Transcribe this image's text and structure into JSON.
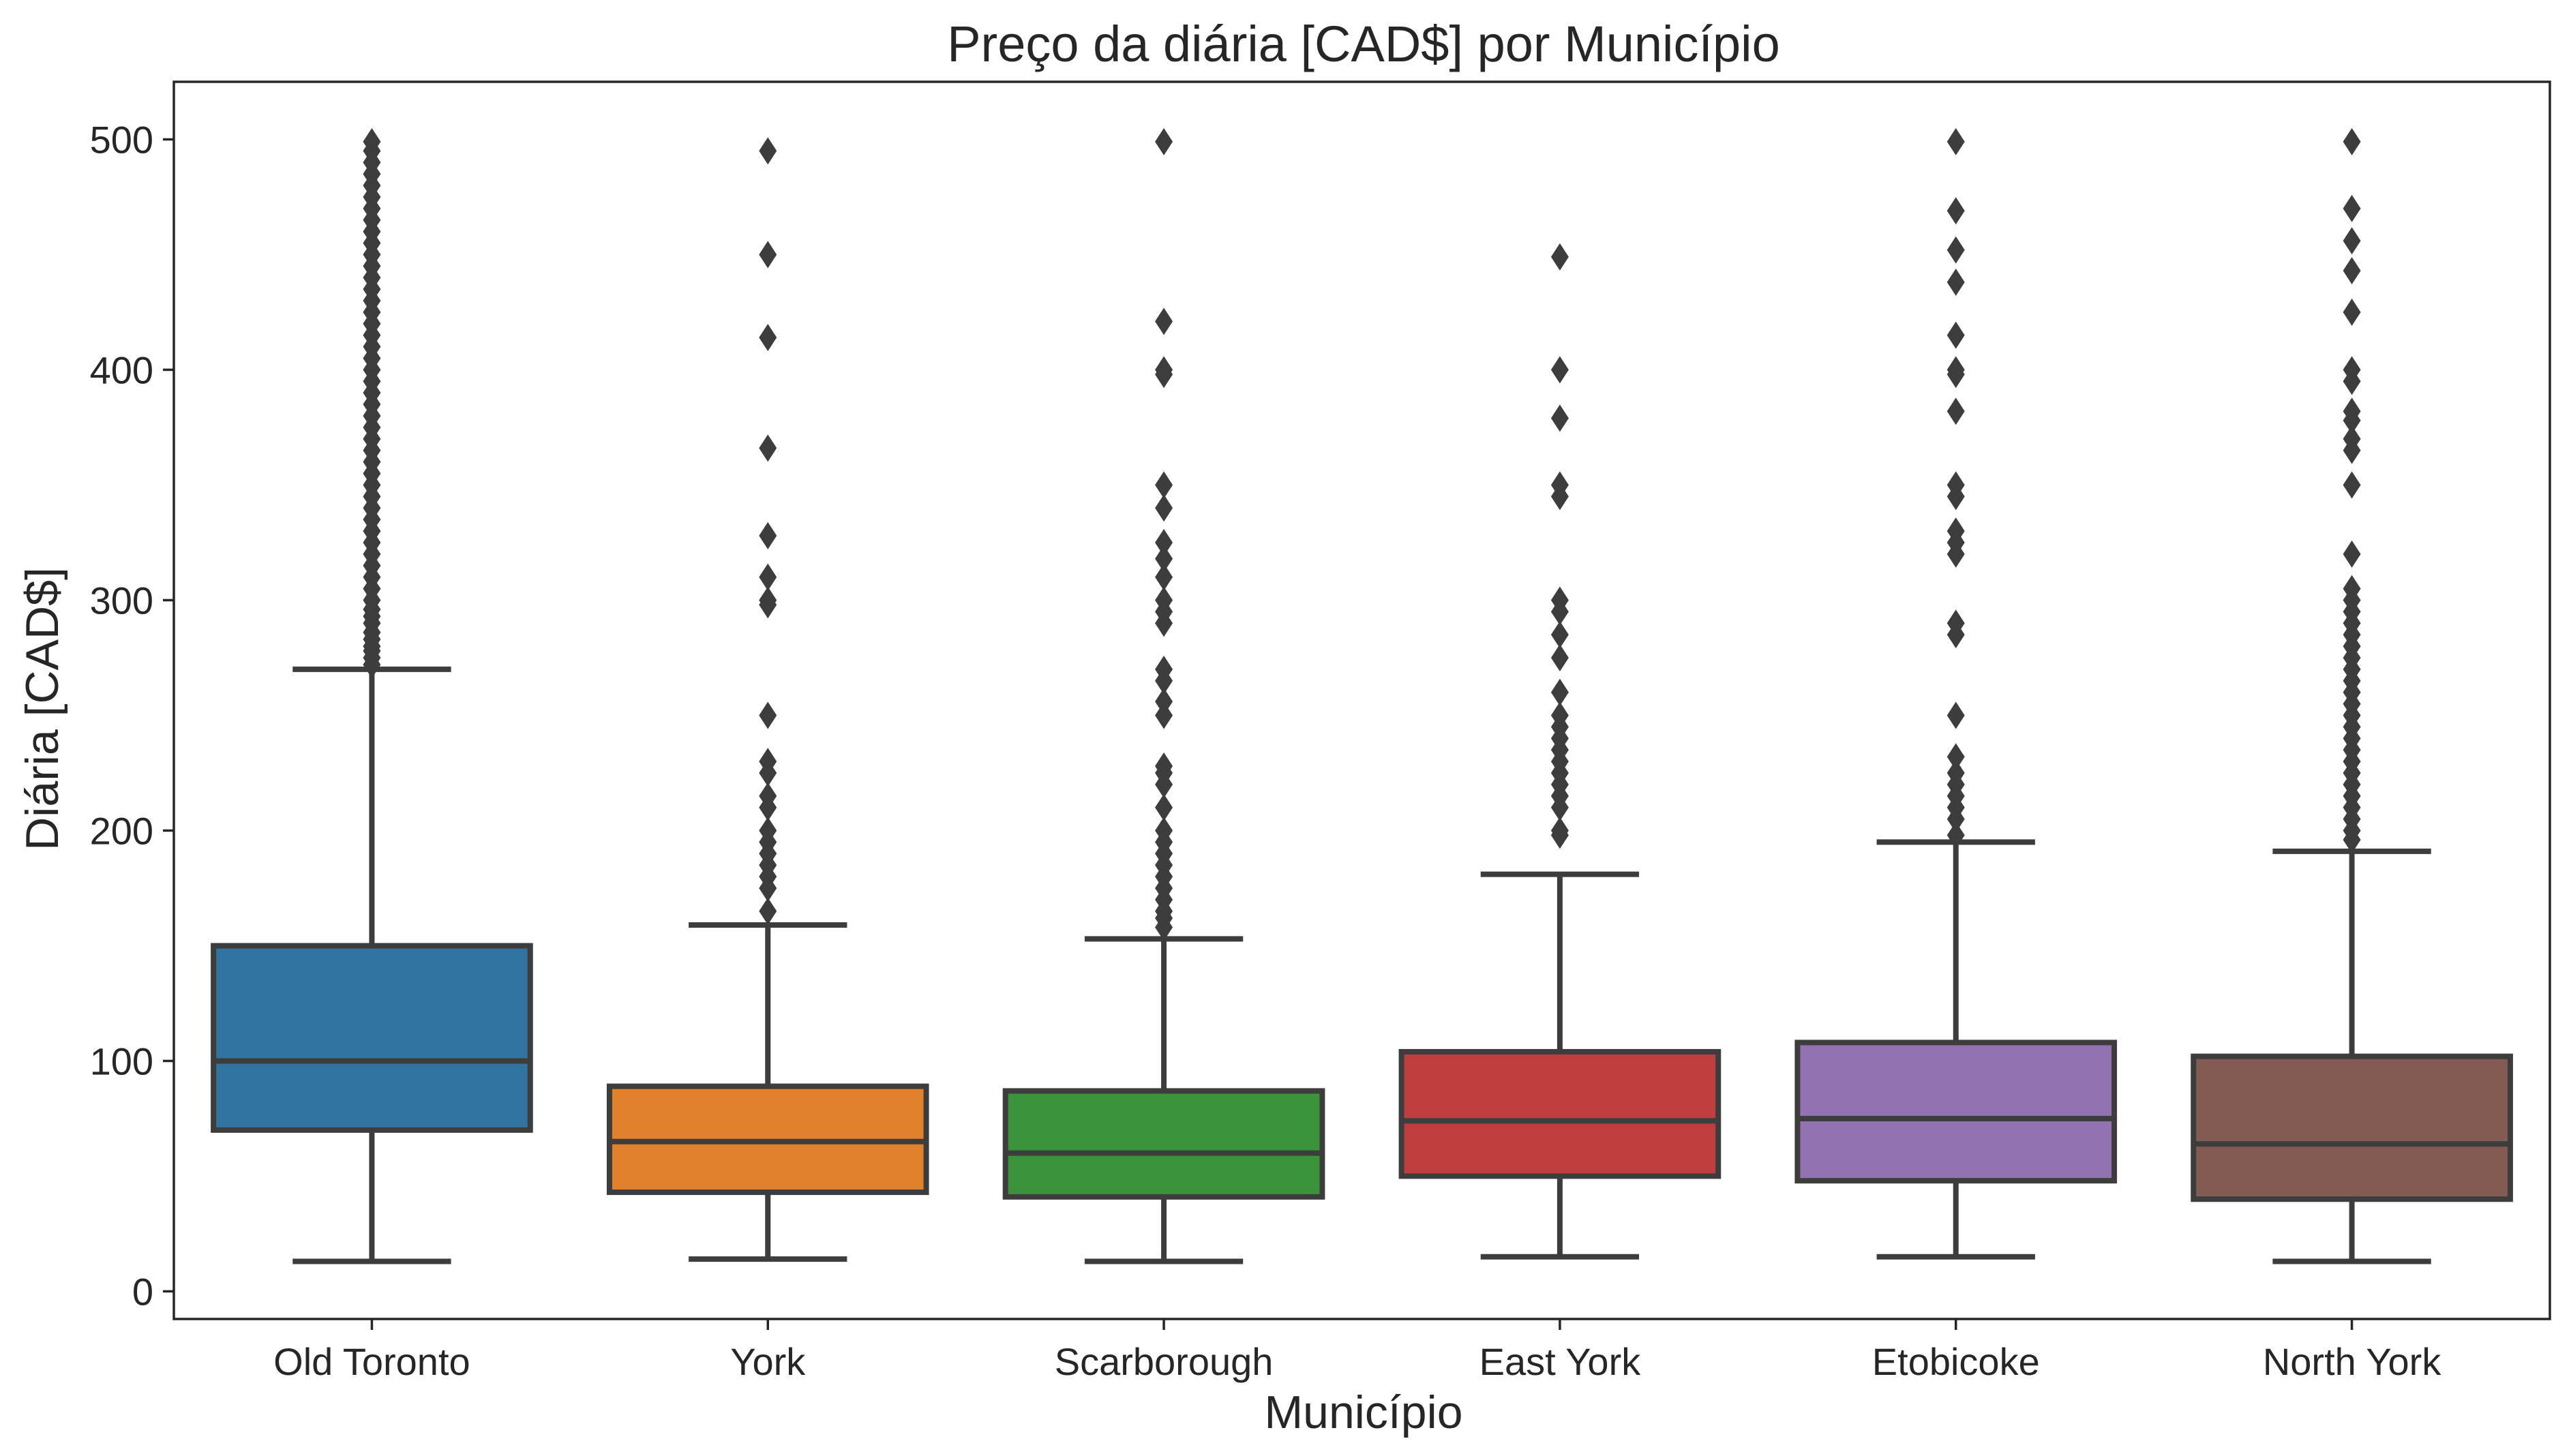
{
  "chart_data": {
    "type": "boxplot",
    "title": "Preço da diária [CAD$] por Município",
    "xlabel": "Município",
    "ylabel": "Diária [CAD$]",
    "ylim": [
      -12,
      525
    ],
    "yticks": [
      0,
      100,
      200,
      300,
      400,
      500
    ],
    "grid": false,
    "legend": "none",
    "categories": [
      "Old Toronto",
      "York",
      "Scarborough",
      "East York",
      "Etobicoke",
      "North York"
    ],
    "colors": [
      "#3274a1",
      "#e1812c",
      "#3a923a",
      "#c03d3e",
      "#9372b2",
      "#845b53"
    ],
    "boxes": [
      {
        "whislo": 13,
        "q1": 70,
        "median": 100,
        "q3": 150,
        "whishi": 270,
        "fliers": [
          272,
          275,
          278,
          280,
          283,
          286,
          290,
          293,
          296,
          300,
          305,
          310,
          315,
          320,
          325,
          330,
          335,
          340,
          345,
          350,
          355,
          360,
          365,
          370,
          375,
          380,
          385,
          390,
          395,
          400,
          405,
          410,
          415,
          420,
          425,
          430,
          435,
          440,
          445,
          450,
          455,
          460,
          465,
          470,
          475,
          480,
          485,
          490,
          495,
          499
        ]
      },
      {
        "whislo": 14,
        "q1": 43,
        "median": 65,
        "q3": 89,
        "whishi": 159,
        "fliers": [
          165,
          175,
          180,
          185,
          190,
          195,
          200,
          210,
          215,
          225,
          230,
          250,
          298,
          300,
          310,
          328,
          366,
          414,
          450,
          495
        ]
      },
      {
        "whislo": 13,
        "q1": 41,
        "median": 60,
        "q3": 87,
        "whishi": 153,
        "fliers": [
          158,
          162,
          165,
          170,
          175,
          180,
          185,
          190,
          195,
          200,
          210,
          220,
          225,
          228,
          250,
          256,
          265,
          270,
          290,
          295,
          300,
          310,
          318,
          325,
          340,
          350,
          398,
          400,
          421,
          499
        ]
      },
      {
        "whislo": 15,
        "q1": 50,
        "median": 74,
        "q3": 104,
        "whishi": 181,
        "fliers": [
          198,
          200,
          210,
          215,
          220,
          225,
          230,
          235,
          240,
          245,
          250,
          260,
          275,
          285,
          295,
          300,
          345,
          350,
          379,
          400,
          449
        ]
      },
      {
        "whislo": 15,
        "q1": 48,
        "median": 75,
        "q3": 108,
        "whishi": 195,
        "fliers": [
          198,
          205,
          210,
          215,
          220,
          225,
          232,
          250,
          285,
          290,
          320,
          325,
          330,
          345,
          350,
          382,
          398,
          400,
          415,
          438,
          452,
          469,
          499
        ]
      },
      {
        "whislo": 13,
        "q1": 40,
        "median": 64,
        "q3": 102,
        "whishi": 191,
        "fliers": [
          196,
          200,
          205,
          210,
          215,
          220,
          225,
          230,
          235,
          240,
          245,
          250,
          255,
          260,
          265,
          270,
          275,
          280,
          285,
          290,
          295,
          300,
          305,
          320,
          350,
          365,
          370,
          378,
          382,
          395,
          400,
          425,
          443,
          456,
          470,
          499
        ]
      }
    ]
  }
}
